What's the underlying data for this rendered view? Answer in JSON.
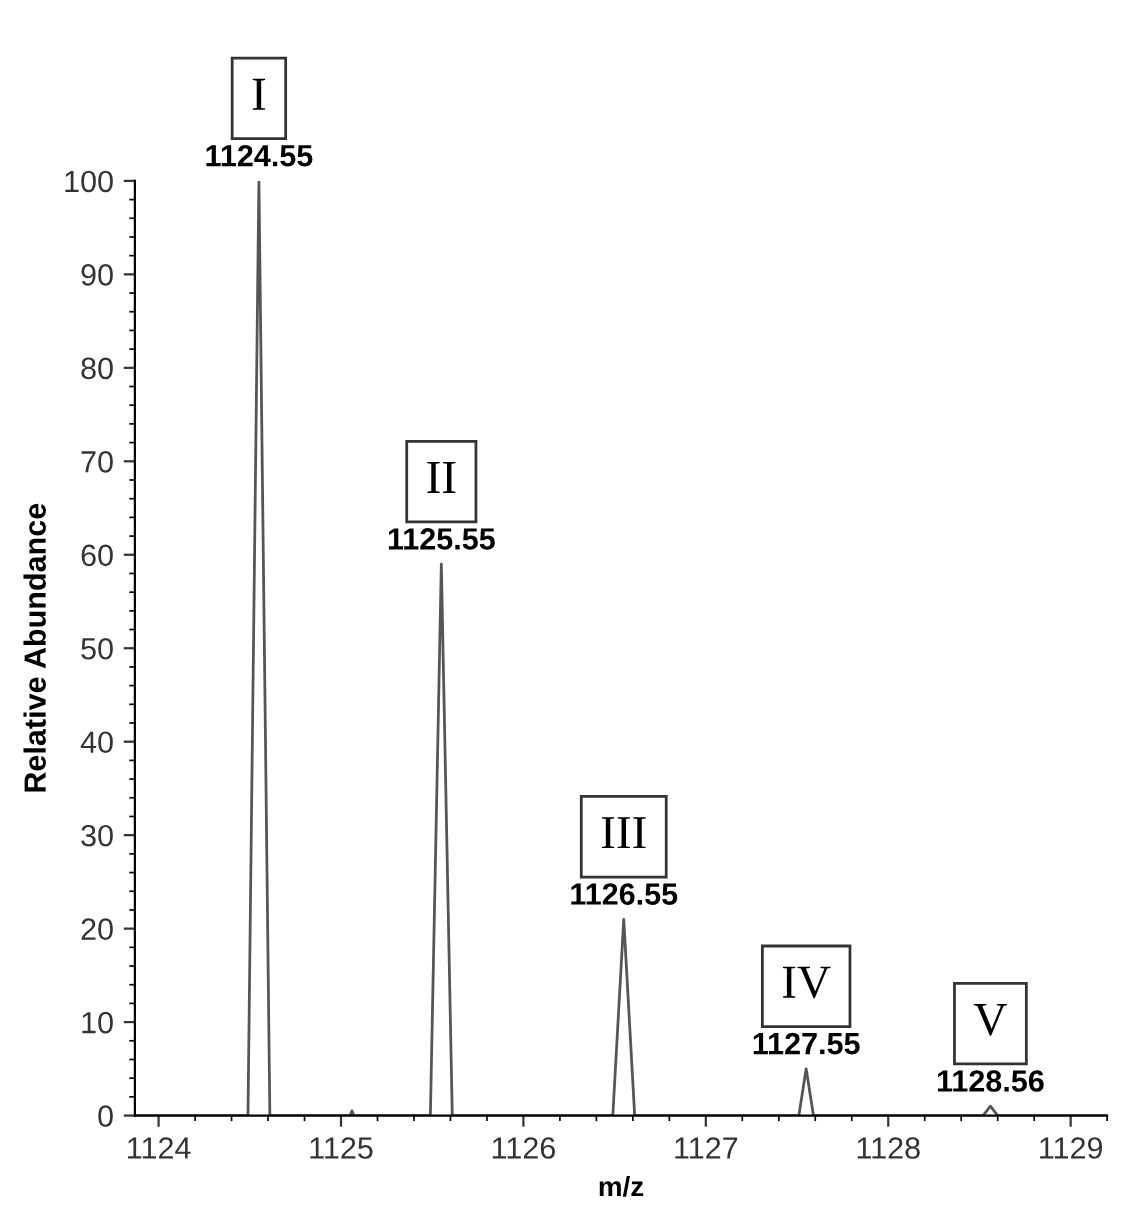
{
  "chart_data": {
    "type": "line",
    "xlabel": "m/z",
    "ylabel": "Relative Abundance",
    "series": [
      {
        "color": "#555555",
        "x": [
          1123.87,
          1124.49,
          1124.55,
          1124.61,
          1125.05,
          1125.06,
          1125.07,
          1125.49,
          1125.55,
          1125.61,
          1126.49,
          1126.55,
          1126.61,
          1127.51,
          1127.55,
          1127.59,
          1128.52,
          1128.56,
          1128.6,
          1129.2
        ],
        "values": [
          0,
          0,
          100,
          0,
          0,
          0.5,
          0,
          0,
          59,
          0,
          0,
          21,
          0,
          0,
          5,
          0,
          0,
          1,
          0,
          0
        ]
      }
    ],
    "annotations": [
      {
        "text": "I",
        "x": 1124.55,
        "y": 100
      },
      {
        "text": "1124.55",
        "x": 1124.55,
        "y": 100
      },
      {
        "text": "II",
        "x": 1125.55,
        "y": 59
      },
      {
        "text": "1125.55",
        "x": 1125.55,
        "y": 59
      },
      {
        "text": "III",
        "x": 1126.55,
        "y": 21
      },
      {
        "text": "1126.55",
        "x": 1126.55,
        "y": 21
      },
      {
        "text": "IV",
        "x": 1127.55,
        "y": 5
      },
      {
        "text": "1127.55",
        "x": 1127.55,
        "y": 5
      },
      {
        "text": "V",
        "x": 1128.56,
        "y": 1
      },
      {
        "text": "1128.56",
        "x": 1128.56,
        "y": 1
      }
    ],
    "xlim": [
      1123.87,
      1129.2
    ],
    "xticks": [
      1124,
      1125,
      1126,
      1127,
      1128,
      1129
    ],
    "ylim": [
      0,
      100
    ],
    "yticks": [
      0,
      10,
      20,
      30,
      40,
      50,
      60,
      70,
      80,
      90,
      100
    ],
    "grid": false,
    "legend": false,
    "marker": "none",
    "line_style": "solid"
  }
}
